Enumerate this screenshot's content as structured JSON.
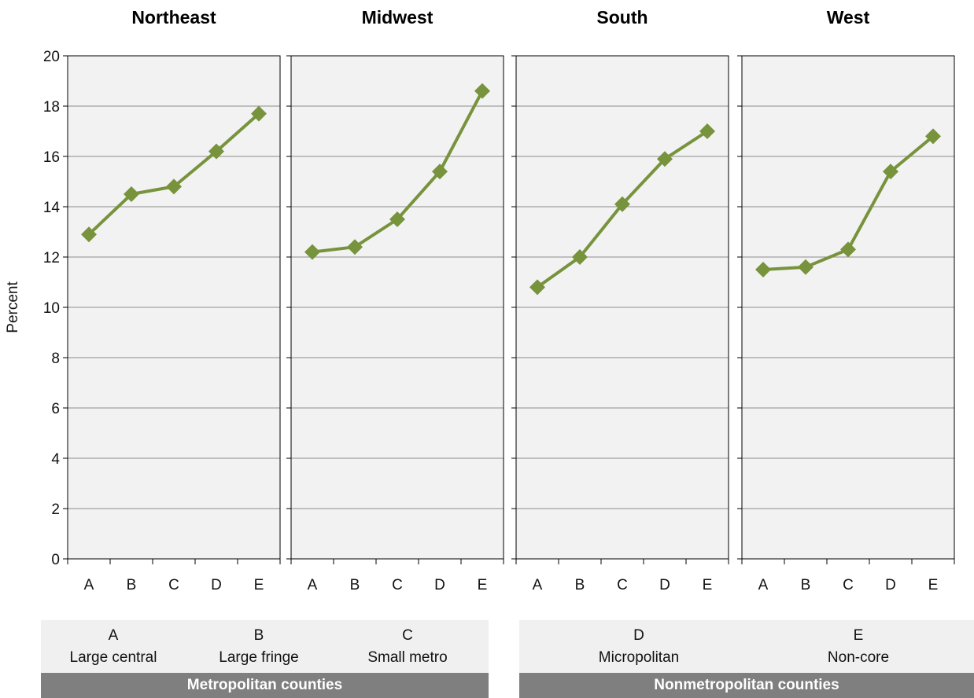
{
  "chart_data": {
    "type": "line",
    "ylabel": "Percent",
    "ylim": [
      0,
      20
    ],
    "yticks": [
      0,
      2,
      4,
      6,
      8,
      10,
      12,
      14,
      16,
      18,
      20
    ],
    "grid": true,
    "categories": [
      "A",
      "B",
      "C",
      "D",
      "E"
    ],
    "panels": [
      {
        "title": "Northeast",
        "values": [
          12.9,
          14.5,
          14.8,
          16.2,
          17.7
        ]
      },
      {
        "title": "Midwest",
        "values": [
          12.2,
          12.4,
          13.5,
          15.4,
          18.6
        ]
      },
      {
        "title": "South",
        "values": [
          10.8,
          12.0,
          14.1,
          15.9,
          17.0
        ]
      },
      {
        "title": "West",
        "values": [
          11.5,
          11.6,
          12.3,
          15.4,
          16.8
        ]
      }
    ],
    "line_color": "#77933c",
    "panel_bg": "#f2f2f2",
    "grid_color": "#8c8c8c"
  },
  "legend": {
    "items": [
      {
        "code": "A",
        "label": "Large central"
      },
      {
        "code": "B",
        "label": "Large fringe"
      },
      {
        "code": "C",
        "label": "Small metro"
      },
      {
        "code": "D",
        "label": "Micropolitan"
      },
      {
        "code": "E",
        "label": "Non-core"
      }
    ],
    "groups": [
      {
        "label": "Metropolitan counties"
      },
      {
        "label": "Nonmetropolitan counties"
      }
    ]
  }
}
